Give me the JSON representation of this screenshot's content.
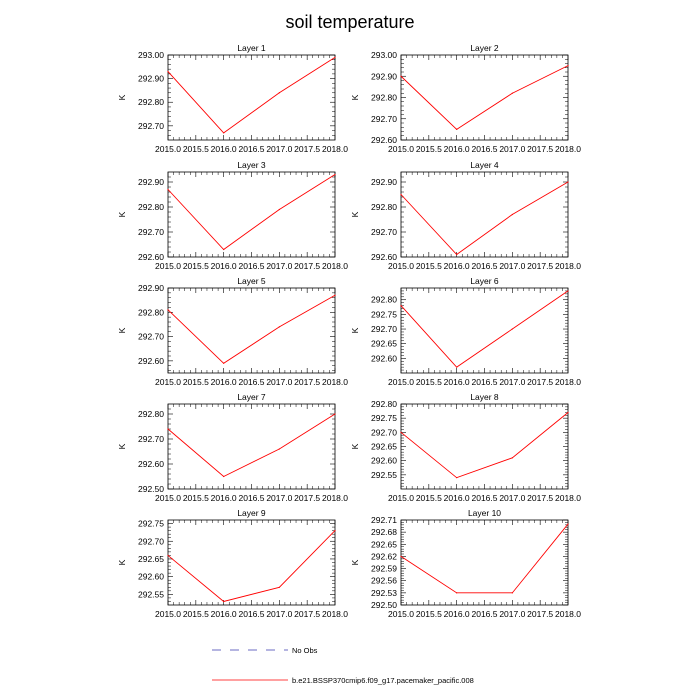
{
  "title": "soil temperature",
  "chart_data": {
    "type": "line",
    "title": "soil temperature",
    "xlabel": "",
    "ylabel": "K",
    "x": [
      2015.0,
      2016.0,
      2017.0,
      2018.0
    ],
    "xlim": [
      2015.0,
      2018.0
    ],
    "xticks": [
      2015.0,
      2015.5,
      2016.0,
      2016.5,
      2017.0,
      2017.5,
      2018.0
    ],
    "xtick_labels": [
      "2015.0",
      "2015.5",
      "2016.0",
      "2016.5",
      "2017.0",
      "2017.5",
      "2018.0"
    ],
    "series_color": "#ff0000",
    "panels": [
      {
        "title": "Layer 1",
        "ylim": [
          292.64,
          293.0
        ],
        "yticks": [
          292.7,
          292.8,
          292.9,
          293.0
        ],
        "ytick_labels": [
          "292.70",
          "292.80",
          "292.90",
          "293.00"
        ],
        "values": [
          292.93,
          292.67,
          292.84,
          292.99
        ]
      },
      {
        "title": "Layer 2",
        "ylim": [
          292.6,
          293.0
        ],
        "yticks": [
          292.6,
          292.7,
          292.8,
          292.9,
          293.0
        ],
        "ytick_labels": [
          "292.60",
          "292.70",
          "292.80",
          "292.90",
          "293.00"
        ],
        "values": [
          292.9,
          292.65,
          292.82,
          292.95
        ]
      },
      {
        "title": "Layer 3",
        "ylim": [
          292.6,
          292.94
        ],
        "yticks": [
          292.6,
          292.7,
          292.8,
          292.9
        ],
        "ytick_labels": [
          "292.60",
          "292.70",
          "292.80",
          "292.90"
        ],
        "values": [
          292.87,
          292.63,
          292.79,
          292.93
        ]
      },
      {
        "title": "Layer 4",
        "ylim": [
          292.6,
          292.94
        ],
        "yticks": [
          292.6,
          292.7,
          292.8,
          292.9
        ],
        "ytick_labels": [
          "292.60",
          "292.70",
          "292.80",
          "292.90"
        ],
        "values": [
          292.85,
          292.61,
          292.77,
          292.9
        ]
      },
      {
        "title": "Layer 5",
        "ylim": [
          292.55,
          292.9
        ],
        "yticks": [
          292.6,
          292.7,
          292.8,
          292.9
        ],
        "ytick_labels": [
          "292.60",
          "292.70",
          "292.80",
          "292.90"
        ],
        "values": [
          292.81,
          292.59,
          292.74,
          292.87
        ]
      },
      {
        "title": "Layer 6",
        "ylim": [
          292.55,
          292.84
        ],
        "yticks": [
          292.6,
          292.65,
          292.7,
          292.75,
          292.8
        ],
        "ytick_labels": [
          "292.60",
          "292.65",
          "292.70",
          "292.75",
          "292.80"
        ],
        "values": [
          292.78,
          292.57,
          292.7,
          292.83
        ]
      },
      {
        "title": "Layer 7",
        "ylim": [
          292.5,
          292.84
        ],
        "yticks": [
          292.5,
          292.6,
          292.7,
          292.8
        ],
        "ytick_labels": [
          "292.50",
          "292.60",
          "292.70",
          "292.80"
        ],
        "values": [
          292.74,
          292.55,
          292.66,
          292.8
        ]
      },
      {
        "title": "Layer 8",
        "ylim": [
          292.5,
          292.8
        ],
        "yticks": [
          292.55,
          292.6,
          292.65,
          292.7,
          292.75,
          292.8
        ],
        "ytick_labels": [
          "292.55",
          "292.60",
          "292.65",
          "292.70",
          "292.75",
          "292.80"
        ],
        "values": [
          292.7,
          292.54,
          292.61,
          292.77
        ]
      },
      {
        "title": "Layer 9",
        "ylim": [
          292.52,
          292.76
        ],
        "yticks": [
          292.55,
          292.6,
          292.65,
          292.7,
          292.75
        ],
        "ytick_labels": [
          "292.55",
          "292.60",
          "292.65",
          "292.70",
          "292.75"
        ],
        "values": [
          292.66,
          292.53,
          292.57,
          292.73
        ]
      },
      {
        "title": "Layer 10",
        "ylim": [
          292.5,
          292.71
        ],
        "yticks": [
          292.5,
          292.53,
          292.56,
          292.59,
          292.62,
          292.65,
          292.68,
          292.71
        ],
        "ytick_labels": [
          "292.50",
          "292.53",
          "292.56",
          "292.59",
          "292.62",
          "292.65",
          "292.68",
          "292.71"
        ],
        "values": [
          292.62,
          292.53,
          292.53,
          292.7
        ]
      }
    ],
    "legend": [
      {
        "label": "No Obs",
        "style": "dashed",
        "color": "#3b3bb0"
      },
      {
        "label": "b.e21.BSSP370cmip6.f09_g17.pacemaker_pacific.008",
        "style": "solid",
        "color": "#ff0000"
      }
    ]
  }
}
